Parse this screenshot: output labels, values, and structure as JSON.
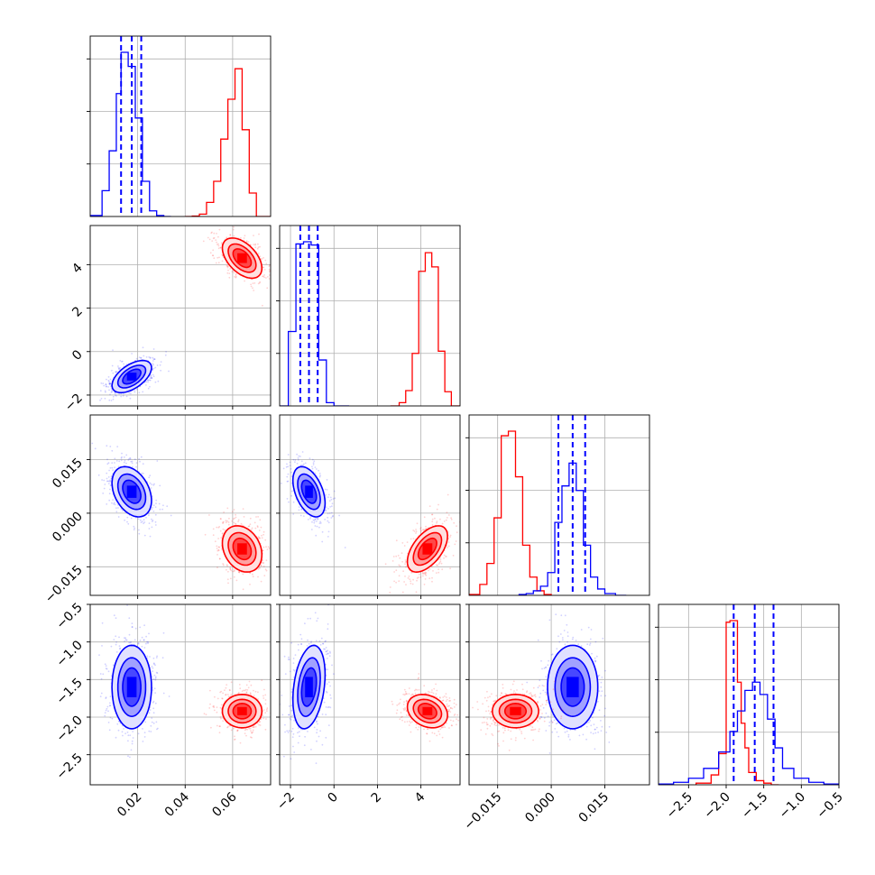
{
  "chart_data": {
    "type": "corner",
    "series": [
      {
        "name": "",
        "color": "#0000ff"
      },
      {
        "name": "",
        "color": "#ff0000"
      }
    ],
    "parameters": [
      {
        "ticks": [
          0.02,
          0.04,
          0.06
        ],
        "tick_labels": [
          "0.02",
          "0.04",
          "0.06"
        ],
        "range": [
          0.0,
          0.076
        ]
      },
      {
        "ticks": [
          -2,
          0,
          2,
          4
        ],
        "tick_labels": [
          "−2",
          "0",
          "2",
          "4"
        ],
        "range": [
          -2.5,
          5.8
        ]
      },
      {
        "ticks": [
          -0.015,
          0.0,
          0.015
        ],
        "tick_labels": [
          "−0.015",
          "0.000",
          "0.015"
        ],
        "range": [
          -0.023,
          0.0275
        ]
      },
      {
        "ticks": [
          -2.5,
          -2.0,
          -1.5,
          -1.0,
          -0.5
        ],
        "tick_labels": [
          "−2.5",
          "−2.0",
          "−1.5",
          "−1.0",
          "−0.5"
        ],
        "range": [
          -2.9,
          -0.5
        ]
      }
    ],
    "marginal_histograms": [
      {
        "param_index": 0,
        "quantile_lines": {
          "color": "#0000ff",
          "values": [
            0.013,
            0.0175,
            0.0215
          ]
        },
        "blue": {
          "bin_edges": [
            0.0,
            0.005,
            0.008,
            0.011,
            0.013,
            0.016,
            0.019,
            0.022,
            0.025,
            0.028,
            0.031,
            0.034
          ],
          "counts": [
            2,
            55,
            140,
            262,
            350,
            320,
            210,
            75,
            12,
            2,
            0
          ]
        },
        "red": {
          "bin_edges": [
            0.04,
            0.043,
            0.046,
            0.049,
            0.052,
            0.055,
            0.058,
            0.061,
            0.064,
            0.067,
            0.07,
            0.073,
            0.076
          ],
          "counts": [
            0,
            1,
            5,
            30,
            75,
            165,
            250,
            315,
            185,
            50,
            0,
            0
          ]
        }
      },
      {
        "param_index": 1,
        "quantile_lines": {
          "color": "#0000ff",
          "values": [
            -1.55,
            -1.15,
            -0.75
          ]
        },
        "blue": {
          "bin_edges": [
            -2.5,
            -2.1,
            -1.75,
            -1.4,
            -1.05,
            -0.7,
            -0.35,
            0.0,
            0.35,
            0.7
          ],
          "counts": [
            0,
            68,
            148,
            150,
            147,
            42,
            3,
            0,
            0
          ]
        },
        "red": {
          "bin_edges": [
            2.6,
            3.0,
            3.3,
            3.6,
            3.9,
            4.2,
            4.5,
            4.8,
            5.1,
            5.4,
            5.8
          ],
          "counts": [
            0,
            3,
            14,
            48,
            123,
            140,
            127,
            50,
            13,
            0
          ]
        }
      },
      {
        "param_index": 2,
        "quantile_lines": {
          "color": "#0000ff",
          "values": [
            0.002,
            0.006,
            0.0095
          ]
        },
        "blue": {
          "bin_edges": [
            -0.009,
            -0.007,
            -0.005,
            -0.003,
            -0.001,
            0.001,
            0.003,
            0.005,
            0.007,
            0.009,
            0.011,
            0.013,
            0.015,
            0.018,
            0.021
          ],
          "counts": [
            1,
            2,
            5,
            10,
            25,
            80,
            120,
            145,
            115,
            55,
            20,
            7,
            2,
            0
          ]
        },
        "red": {
          "bin_edges": [
            -0.023,
            -0.02,
            -0.018,
            -0.016,
            -0.014,
            -0.012,
            -0.01,
            -0.008,
            -0.006,
            -0.004,
            -0.002,
            0.0
          ],
          "counts": [
            1,
            12,
            35,
            85,
            175,
            180,
            130,
            55,
            20,
            5,
            1
          ]
        }
      },
      {
        "param_index": 3,
        "quantile_lines": {
          "color": "#0000ff",
          "values": [
            -1.9,
            -1.62,
            -1.37
          ]
        },
        "blue": {
          "bin_edges": [
            -2.9,
            -2.7,
            -2.5,
            -2.3,
            -2.1,
            -1.95,
            -1.85,
            -1.75,
            -1.65,
            -1.55,
            -1.45,
            -1.35,
            -1.25,
            -1.1,
            -0.9,
            -0.7,
            -0.5
          ],
          "counts": [
            1,
            3,
            8,
            20,
            40,
            65,
            90,
            115,
            125,
            110,
            80,
            45,
            20,
            8,
            3,
            1
          ]
        },
        "red": {
          "bin_edges": [
            -2.4,
            -2.2,
            -2.1,
            -2.0,
            -1.95,
            -1.9,
            -1.85,
            -1.8,
            -1.75,
            -1.7,
            -1.6,
            -1.5,
            -1.4,
            -1.3
          ],
          "counts": [
            2,
            12,
            38,
            198,
            200,
            200,
            125,
            75,
            45,
            15,
            5,
            2,
            0
          ]
        }
      }
    ],
    "pair_density": [
      {
        "x_index": 0,
        "y_index": 1,
        "blue_center": [
          0.0175,
          -1.15
        ],
        "blue_spread": [
          0.0045,
          0.4
        ],
        "red_center": [
          0.064,
          4.3
        ],
        "red_spread": [
          0.0045,
          0.5
        ],
        "correlation_blue": 0.55,
        "correlation_red": -0.5
      },
      {
        "x_index": 0,
        "y_index": 2,
        "blue_center": [
          0.0175,
          0.006
        ],
        "blue_spread": [
          0.0045,
          0.0038
        ],
        "red_center": [
          0.064,
          -0.01
        ],
        "red_spread": [
          0.0045,
          0.0035
        ],
        "correlation_blue": -0.35,
        "correlation_red": -0.25
      },
      {
        "x_index": 1,
        "y_index": 2,
        "blue_center": [
          -1.15,
          0.006
        ],
        "blue_spread": [
          0.4,
          0.0038
        ],
        "red_center": [
          4.3,
          -0.01
        ],
        "red_spread": [
          0.5,
          0.0035
        ],
        "correlation_blue": -0.45,
        "correlation_red": 0.55
      },
      {
        "x_index": 0,
        "y_index": 3,
        "blue_center": [
          0.0175,
          -1.6
        ],
        "blue_spread": [
          0.0045,
          0.3
        ],
        "red_center": [
          0.064,
          -1.92
        ],
        "red_spread": [
          0.0045,
          0.12
        ],
        "correlation_blue": 0.0,
        "correlation_red": 0.0
      },
      {
        "x_index": 1,
        "y_index": 3,
        "blue_center": [
          -1.15,
          -1.6
        ],
        "blue_spread": [
          0.4,
          0.3
        ],
        "red_center": [
          4.3,
          -1.92
        ],
        "red_spread": [
          0.5,
          0.12
        ],
        "correlation_blue": 0.3,
        "correlation_red": -0.25
      },
      {
        "x_index": 2,
        "y_index": 3,
        "blue_center": [
          0.006,
          -1.6
        ],
        "blue_spread": [
          0.0038,
          0.3
        ],
        "red_center": [
          -0.01,
          -1.92
        ],
        "red_spread": [
          0.0035,
          0.12
        ],
        "correlation_blue": 0.0,
        "correlation_red": 0.0
      }
    ]
  }
}
